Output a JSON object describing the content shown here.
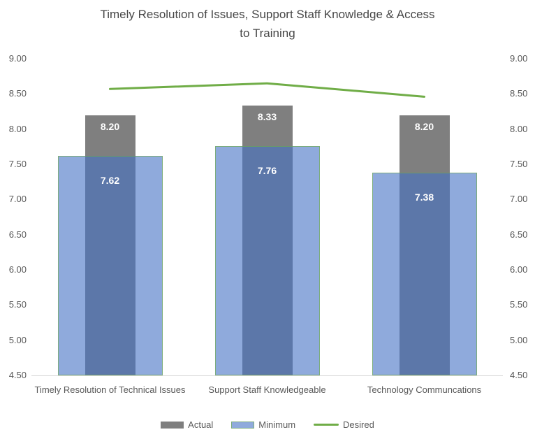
{
  "title": "Timely  Resolution of Issues, Support Staff Knowledge & Access\nto Training",
  "chart_data": {
    "type": "bar",
    "title": "Timely  Resolution of Issues, Support Staff Knowledge & Access to Training",
    "categories": [
      "Timely Resolution of Technical Issues",
      "Support Staff Knowledgeable",
      "Technology Communcations"
    ],
    "series": [
      {
        "name": "Actual",
        "type": "bar",
        "values": [
          8.2,
          8.33,
          8.2
        ],
        "labels": [
          "8.20",
          "8.33",
          "8.20"
        ],
        "color": "#7F7F7F"
      },
      {
        "name": "Minimum",
        "type": "bar",
        "values": [
          7.62,
          7.76,
          7.38
        ],
        "labels": [
          "7.62",
          "7.76",
          "7.38"
        ],
        "color": "#4472C4",
        "fill_opacity": 0.6,
        "border_color": "#70AD47",
        "border_opacity": 0.65
      },
      {
        "name": "Desired",
        "type": "line",
        "values": [
          8.57,
          8.65,
          8.46
        ],
        "color": "#70AD47"
      }
    ],
    "ylim": [
      4.5,
      9.0
    ],
    "yticks": [
      "9.00",
      "8.50",
      "8.00",
      "7.50",
      "7.00",
      "6.50",
      "6.00",
      "5.50",
      "5.00",
      "4.50"
    ],
    "dual_y_axis": true,
    "grid": false,
    "legend_position": "bottom"
  },
  "legend": {
    "items": [
      "Actual",
      "Minimum",
      "Desired"
    ]
  },
  "colors": {
    "axis_text": "#595959",
    "title_text": "#474747",
    "axis_line": "#D9D9D9",
    "data_label": "#FFFFFF",
    "background": "#FFFFFF"
  }
}
